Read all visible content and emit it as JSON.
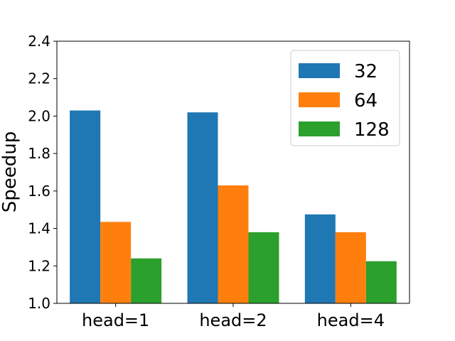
{
  "chart_data": {
    "type": "bar",
    "categories": [
      "head=1",
      "head=2",
      "head=4"
    ],
    "series": [
      {
        "name": "32",
        "color": "#1f77b4",
        "values": [
          2.03,
          2.02,
          1.475
        ]
      },
      {
        "name": "64",
        "color": "#ff7f0e",
        "values": [
          1.435,
          1.63,
          1.38
        ]
      },
      {
        "name": "128",
        "color": "#2ca02c",
        "values": [
          1.24,
          1.38,
          1.225
        ]
      }
    ],
    "title": "",
    "xlabel": "",
    "ylabel": "Speedup",
    "ylim": [
      1.0,
      2.4
    ],
    "yticks": [
      "1.0",
      "1.2",
      "1.4",
      "1.6",
      "1.8",
      "2.0",
      "2.2",
      "2.4"
    ],
    "grid": false,
    "legend_position": "top-right"
  }
}
